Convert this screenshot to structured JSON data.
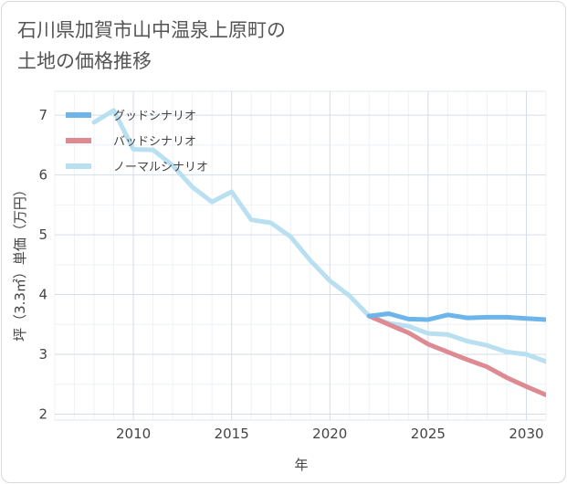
{
  "title_lines": [
    "石川県加賀市山中温泉上原町の",
    "土地の価格推移"
  ],
  "chart_data": {
    "type": "line",
    "xlabel": "年",
    "ylabel": "坪（3.3㎡）単価（万円）",
    "xlim": [
      2006,
      2031
    ],
    "ylim": [
      1.9,
      7.4
    ],
    "xticks": [
      2010,
      2015,
      2020,
      2025,
      2030
    ],
    "yticks": [
      2,
      3,
      4,
      5,
      6,
      7
    ],
    "grid": true,
    "legend_position": "top-left",
    "series": [
      {
        "name": "グッドシナリオ",
        "color": "#6cb4ea",
        "x": [
          2022,
          2023,
          2024,
          2025,
          2026,
          2027,
          2028,
          2029,
          2030,
          2031
        ],
        "y": [
          3.64,
          3.68,
          3.59,
          3.58,
          3.66,
          3.61,
          3.62,
          3.62,
          3.6,
          3.58
        ]
      },
      {
        "name": "バッドシナリオ",
        "color": "#dd8a92",
        "x": [
          2022,
          2023,
          2024,
          2025,
          2026,
          2027,
          2028,
          2029,
          2030,
          2031
        ],
        "y": [
          3.64,
          3.5,
          3.36,
          3.17,
          3.04,
          2.91,
          2.79,
          2.61,
          2.46,
          2.32
        ]
      },
      {
        "name": "ノーマルシナリオ",
        "color": "#b9e0f0",
        "x": [
          2008,
          2009,
          2010,
          2011,
          2012,
          2013,
          2014,
          2015,
          2016,
          2017,
          2018,
          2019,
          2020,
          2021,
          2022,
          2023,
          2024,
          2025,
          2026,
          2027,
          2028,
          2029,
          2030,
          2031
        ],
        "y": [
          6.88,
          7.08,
          6.43,
          6.42,
          6.16,
          5.8,
          5.55,
          5.72,
          5.25,
          5.2,
          4.97,
          4.57,
          4.23,
          3.98,
          3.64,
          3.52,
          3.47,
          3.35,
          3.33,
          3.22,
          3.15,
          3.04,
          3.0,
          2.88
        ]
      }
    ]
  }
}
